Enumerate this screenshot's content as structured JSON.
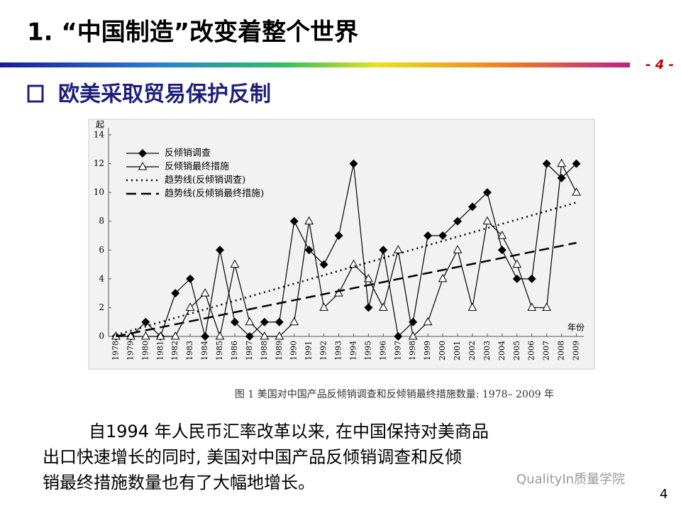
{
  "slide": {
    "title": "1. “中国制造”改变着整个世界",
    "page_label": "- 4 -",
    "subtitle": "欧美采取贸易保护反制",
    "body": [
      "自1994 年人民币汇率改革以来, 在中国保持对美商品",
      "出口快速增长的同时, 美国对中国产品反倾销调查和反倾",
      "销最终措施数量也有了大幅地增长。"
    ],
    "watermark": "QualityIn质量学院",
    "slide_number": "4"
  },
  "chart_data": {
    "type": "line",
    "caption": "图 1  美国对中国产品反倾销调查和反倾销最终措施数量: 1978– 2009 年",
    "y_label": "起",
    "x_label": "年份",
    "categories": [
      "1978",
      "1979",
      "1980",
      "1981",
      "1982",
      "1983",
      "1984",
      "1985",
      "1986",
      "1987",
      "1988",
      "1989",
      "1990",
      "1991",
      "1992",
      "1993",
      "1994",
      "1995",
      "1996",
      "1997",
      "1998",
      "1999",
      "2000",
      "2001",
      "2002",
      "2003",
      "2004",
      "2005",
      "2006",
      "2007",
      "2008",
      "2009"
    ],
    "series": [
      {
        "name": "反倾销调查",
        "color": "#000000",
        "marker": "diamond",
        "values": [
          0,
          0,
          1,
          0,
          3,
          4,
          0,
          6,
          1,
          0,
          1,
          1,
          8,
          6,
          5,
          7,
          12,
          2,
          6,
          0,
          1,
          7,
          7,
          8,
          9,
          10,
          6,
          4,
          4,
          12,
          11,
          12
        ]
      },
      {
        "name": "反倾销最终措施",
        "color": "#000000",
        "marker": "triangle",
        "values": [
          0,
          0,
          0,
          0,
          0,
          2,
          3,
          0,
          5,
          1,
          0,
          0,
          1,
          8,
          2,
          3,
          5,
          4,
          2,
          6,
          0,
          1,
          4,
          6,
          2,
          8,
          7,
          5,
          2,
          2,
          12,
          10
        ]
      },
      {
        "name": "趋势线(反倾销调查)",
        "color": "#000000",
        "style": "dotted",
        "x": [
          "1978",
          "2009"
        ],
        "values": [
          0.1,
          9.3
        ]
      },
      {
        "name": "趋势线(反倾销最终措施)",
        "color": "#000000",
        "style": "dashed",
        "x": [
          "1978",
          "2009"
        ],
        "values": [
          0,
          6.5
        ]
      }
    ],
    "ylim": [
      0,
      14
    ],
    "yticks": [
      0,
      2,
      4,
      6,
      8,
      10,
      12,
      14
    ],
    "legend": "upper left"
  }
}
